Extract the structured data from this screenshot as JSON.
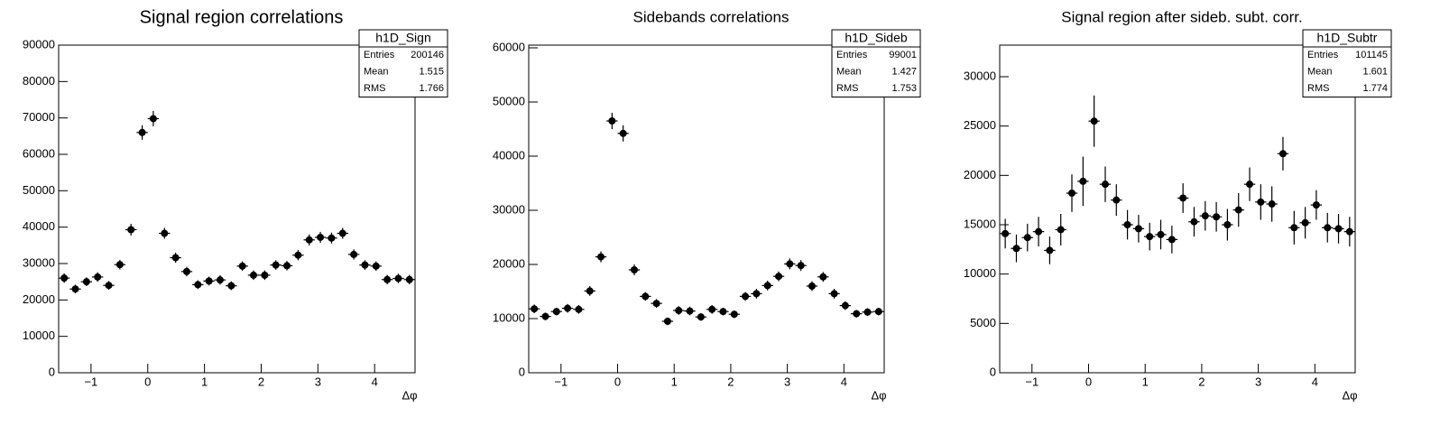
{
  "chart_data": [
    {
      "type": "errorbar",
      "title": "Signal region correlations",
      "xlabel": "Δφ",
      "color": "#000000",
      "xlim": [
        -1.5708,
        4.7124
      ],
      "ylim": [
        0,
        90000
      ],
      "xticks": [
        {
          "value": -1,
          "label": "−1"
        },
        0,
        1,
        2,
        3,
        4
      ],
      "yticks": [
        0,
        10000,
        20000,
        30000,
        40000,
        50000,
        60000,
        70000,
        80000,
        90000
      ],
      "x": [
        -1.473,
        -1.276,
        -1.08,
        -0.884,
        -0.687,
        -0.491,
        -0.295,
        -0.098,
        0.098,
        0.295,
        0.491,
        0.687,
        0.884,
        1.08,
        1.276,
        1.473,
        1.669,
        1.865,
        2.062,
        2.258,
        2.454,
        2.651,
        2.847,
        3.043,
        3.24,
        3.436,
        3.633,
        3.829,
        4.025,
        4.222,
        4.418,
        4.614
      ],
      "values": [
        26000,
        23000,
        25000,
        26300,
        24000,
        29700,
        39300,
        66000,
        69800,
        38300,
        31600,
        27800,
        24200,
        25200,
        25500,
        23900,
        29300,
        26800,
        26800,
        29600,
        29400,
        32300,
        36500,
        37200,
        37000,
        38300,
        32500,
        29600,
        29300,
        25600,
        25900,
        25600
      ],
      "errors": [
        1300,
        1200,
        1200,
        1300,
        1200,
        1300,
        1600,
        2000,
        2100,
        1500,
        1400,
        1300,
        1200,
        1200,
        1300,
        1200,
        1300,
        1300,
        1300,
        1300,
        1300,
        1400,
        1500,
        1500,
        1500,
        1500,
        1400,
        1300,
        1300,
        1300,
        1300,
        1300
      ],
      "stats": {
        "title": "h1D_Sign",
        "rows": [
          [
            "Entries",
            200146
          ],
          [
            "Mean",
            1.515
          ],
          [
            "RMS",
            1.766
          ]
        ]
      }
    },
    {
      "type": "errorbar",
      "title": "Sidebands correlations",
      "xlabel": "Δφ",
      "color": "#000000",
      "xlim": [
        -1.5708,
        4.7124
      ],
      "ylim": [
        0,
        60500
      ],
      "xticks": [
        {
          "value": -1,
          "label": "−1"
        },
        0,
        1,
        2,
        3,
        4
      ],
      "yticks": [
        0,
        10000,
        20000,
        30000,
        40000,
        50000,
        60000
      ],
      "x": [
        -1.473,
        -1.276,
        -1.08,
        -0.884,
        -0.687,
        -0.491,
        -0.295,
        -0.098,
        0.098,
        0.295,
        0.491,
        0.687,
        0.884,
        1.08,
        1.276,
        1.473,
        1.669,
        1.865,
        2.062,
        2.258,
        2.454,
        2.651,
        2.847,
        3.043,
        3.24,
        3.436,
        3.633,
        3.829,
        4.025,
        4.222,
        4.418,
        4.614
      ],
      "values": [
        11800,
        10400,
        11300,
        11900,
        11700,
        15100,
        21400,
        46500,
        44200,
        19000,
        14100,
        12800,
        9500,
        11500,
        11400,
        10300,
        11700,
        11300,
        10800,
        14100,
        14600,
        16100,
        17800,
        20100,
        19800,
        16000,
        17700,
        14600,
        12400,
        10900,
        11200,
        11300
      ],
      "errors": [
        800,
        700,
        700,
        800,
        800,
        900,
        1000,
        1500,
        1500,
        1000,
        800,
        800,
        700,
        800,
        800,
        700,
        800,
        700,
        700,
        800,
        900,
        900,
        900,
        1000,
        1000,
        900,
        900,
        900,
        800,
        700,
        700,
        700
      ],
      "stats": {
        "title": "h1D_Sideb",
        "rows": [
          [
            "Entries",
            99001
          ],
          [
            "Mean",
            1.427
          ],
          [
            "RMS",
            1.753
          ]
        ]
      }
    },
    {
      "type": "errorbar",
      "title": "Signal region after sideb. subt. corr.",
      "xlabel": "Δφ",
      "color": "#000000",
      "xlim": [
        -1.5708,
        4.7124
      ],
      "ylim": [
        0,
        33200
      ],
      "xticks": [
        {
          "value": -1,
          "label": "−1"
        },
        0,
        1,
        2,
        3,
        4
      ],
      "yticks": [
        0,
        5000,
        10000,
        15000,
        20000,
        25000,
        30000
      ],
      "x": [
        -1.473,
        -1.276,
        -1.08,
        -0.884,
        -0.687,
        -0.491,
        -0.295,
        -0.098,
        0.098,
        0.295,
        0.491,
        0.687,
        0.884,
        1.08,
        1.276,
        1.473,
        1.669,
        1.865,
        2.062,
        2.258,
        2.454,
        2.651,
        2.847,
        3.043,
        3.24,
        3.436,
        3.633,
        3.829,
        4.025,
        4.222,
        4.418,
        4.614
      ],
      "values": [
        14100,
        12600,
        13700,
        14300,
        12400,
        14500,
        18200,
        19400,
        25500,
        19100,
        17500,
        15000,
        14600,
        13800,
        14000,
        13500,
        17700,
        15300,
        15900,
        15800,
        15000,
        16500,
        19100,
        17300,
        17100,
        22200,
        14700,
        15200,
        17000,
        14700,
        14600,
        14300
      ],
      "errors": [
        1500,
        1400,
        1400,
        1500,
        1400,
        1600,
        1900,
        2500,
        2600,
        1800,
        1600,
        1500,
        1400,
        1400,
        1500,
        1400,
        1500,
        1500,
        1500,
        1500,
        1600,
        1700,
        1700,
        1800,
        1800,
        1700,
        1700,
        1600,
        1500,
        1500,
        1500,
        1500
      ],
      "stats": {
        "title": "h1D_Subtr",
        "rows": [
          [
            "Entries",
            101145
          ],
          [
            "Mean",
            1.601
          ],
          [
            "RMS",
            1.774
          ]
        ]
      }
    }
  ]
}
